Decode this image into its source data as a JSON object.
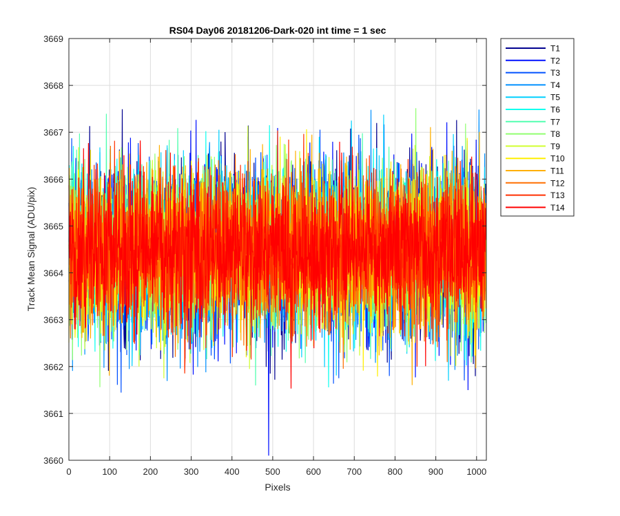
{
  "chart_data": {
    "type": "line",
    "title": "RS04 Day06 20181206-Dark-020 int time = 1 sec",
    "xlabel": "Pixels",
    "ylabel": "Track Mean Signal (ADU/pix)",
    "xlim": [
      0,
      1024
    ],
    "ylim": [
      3660,
      3669
    ],
    "xticks": [
      0,
      100,
      200,
      300,
      400,
      500,
      600,
      700,
      800,
      900,
      1000
    ],
    "yticks": [
      3660,
      3661,
      3662,
      3663,
      3664,
      3665,
      3666,
      3667,
      3668,
      3669
    ],
    "grid": true,
    "legend_position": "outside-right",
    "series_summary": {
      "n_points": 1024,
      "mean": 3664.5,
      "typical_min": 3662.5,
      "typical_max": 3666.8,
      "notable_min": {
        "x": 490,
        "y": 3660.1
      }
    },
    "series": [
      {
        "name": "T1",
        "color": "#00008f"
      },
      {
        "name": "T2",
        "color": "#0010ff"
      },
      {
        "name": "T3",
        "color": "#0050ff"
      },
      {
        "name": "T4",
        "color": "#0090ff"
      },
      {
        "name": "T5",
        "color": "#00d0ff"
      },
      {
        "name": "T6",
        "color": "#10ffef"
      },
      {
        "name": "T7",
        "color": "#50ffaf"
      },
      {
        "name": "T8",
        "color": "#90ff6f"
      },
      {
        "name": "T9",
        "color": "#d0ff2f"
      },
      {
        "name": "T10",
        "color": "#ffef00"
      },
      {
        "name": "T11",
        "color": "#ffaf00"
      },
      {
        "name": "T12",
        "color": "#ff6f00"
      },
      {
        "name": "T13",
        "color": "#ff2f00"
      },
      {
        "name": "T14",
        "color": "#ff0000"
      }
    ]
  }
}
